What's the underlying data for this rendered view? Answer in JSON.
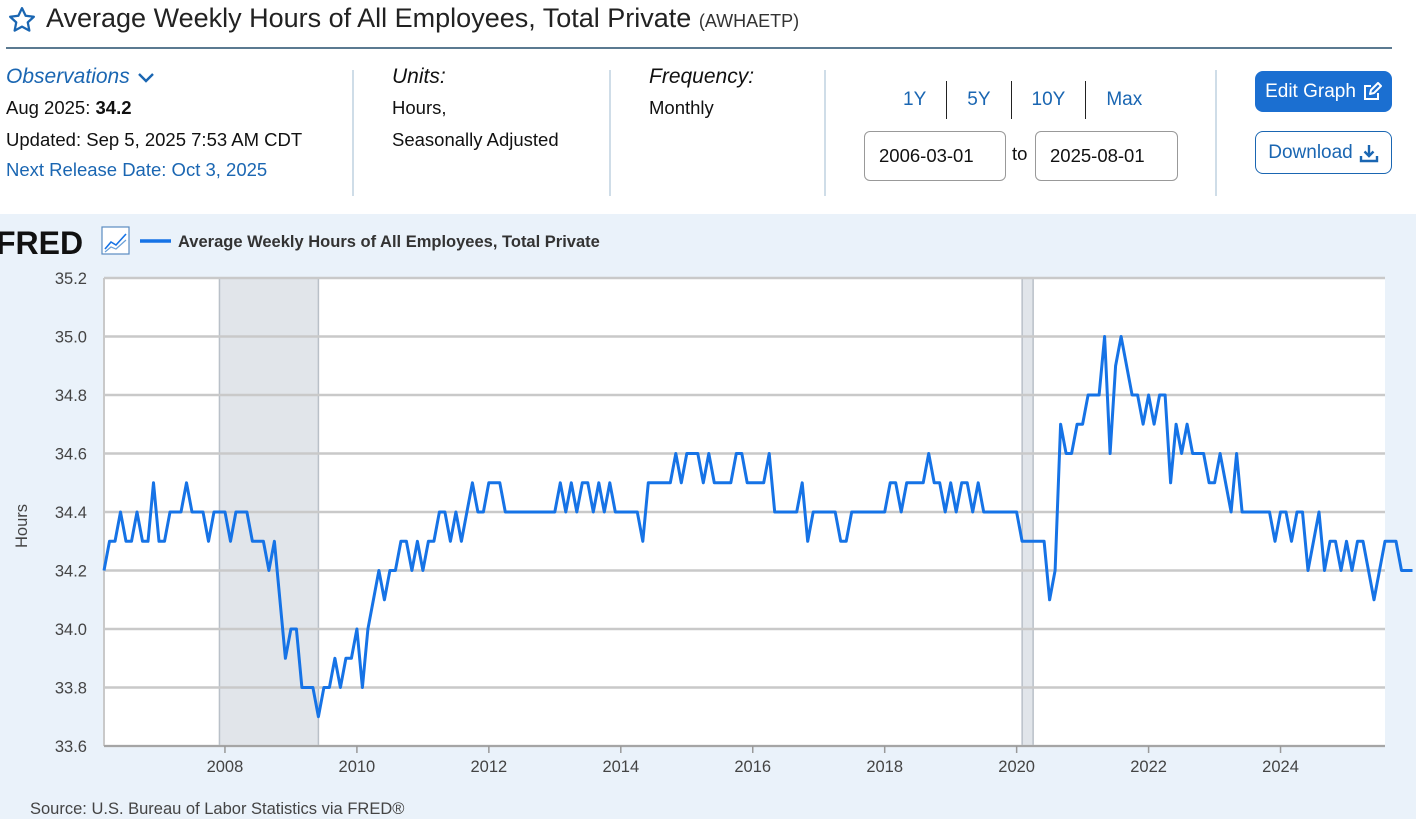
{
  "header": {
    "title": "Average Weekly Hours of All Employees, Total Private",
    "series_id": "(AWHAETP)"
  },
  "observations": {
    "link_label": "Observations",
    "latest_label": "Aug 2025:",
    "latest_value": "34.2",
    "updated": "Updated: Sep 5, 2025 7:53 AM CDT",
    "next_release": "Next Release Date: Oct 3, 2025"
  },
  "units": {
    "label": "Units:",
    "line1": "Hours,",
    "line2": "Seasonally Adjusted"
  },
  "frequency": {
    "label": "Frequency:",
    "value": "Monthly"
  },
  "range_buttons": [
    "1Y",
    "5Y",
    "10Y",
    "Max"
  ],
  "date_range": {
    "start": "2006-03-01",
    "to_label": "to",
    "end": "2025-08-01"
  },
  "actions": {
    "edit_label": "Edit Graph",
    "download_label": "Download"
  },
  "colors": {
    "accent": "#1a66b2",
    "series": "#1673e6",
    "recession": "#e1e5ea",
    "chart_bg": "#eaf2fa"
  },
  "chart_data": {
    "type": "line",
    "logo_text": "FRED",
    "legend": "Average Weekly Hours of All Employees, Total Private",
    "ylabel": "Hours",
    "ylim": [
      33.6,
      35.2
    ],
    "yticks": [
      "33.6",
      "33.8",
      "34.0",
      "34.2",
      "34.4",
      "34.6",
      "34.8",
      "35.0",
      "35.2"
    ],
    "xticks": [
      "2008",
      "2010",
      "2012",
      "2014",
      "2016",
      "2018",
      "2020",
      "2022",
      "2024"
    ],
    "x_start": "2006-03",
    "x_end": "2025-08",
    "source": "Source: U.S. Bureau of Labor Statistics via FRED®",
    "recessions": [
      {
        "start": "2007-12",
        "end": "2009-06"
      },
      {
        "start": "2020-02",
        "end": "2020-04"
      }
    ],
    "series": [
      {
        "name": "AWHAETP",
        "start": "2006-03",
        "values": [
          34.2,
          34.3,
          34.3,
          34.4,
          34.3,
          34.3,
          34.4,
          34.3,
          34.3,
          34.5,
          34.3,
          34.3,
          34.4,
          34.4,
          34.4,
          34.5,
          34.4,
          34.4,
          34.4,
          34.3,
          34.4,
          34.4,
          34.4,
          34.3,
          34.4,
          34.4,
          34.4,
          34.3,
          34.3,
          34.3,
          34.2,
          34.3,
          34.1,
          33.9,
          34.0,
          34.0,
          33.8,
          33.8,
          33.8,
          33.7,
          33.8,
          33.8,
          33.9,
          33.8,
          33.9,
          33.9,
          34.0,
          33.8,
          34.0,
          34.1,
          34.2,
          34.1,
          34.2,
          34.2,
          34.3,
          34.3,
          34.2,
          34.3,
          34.2,
          34.3,
          34.3,
          34.4,
          34.4,
          34.3,
          34.4,
          34.3,
          34.4,
          34.5,
          34.4,
          34.4,
          34.5,
          34.5,
          34.5,
          34.4,
          34.4,
          34.4,
          34.4,
          34.4,
          34.4,
          34.4,
          34.4,
          34.4,
          34.4,
          34.5,
          34.4,
          34.5,
          34.4,
          34.5,
          34.5,
          34.4,
          34.5,
          34.4,
          34.5,
          34.4,
          34.4,
          34.4,
          34.4,
          34.4,
          34.3,
          34.5,
          34.5,
          34.5,
          34.5,
          34.5,
          34.6,
          34.5,
          34.6,
          34.6,
          34.6,
          34.5,
          34.6,
          34.5,
          34.5,
          34.5,
          34.5,
          34.6,
          34.6,
          34.5,
          34.5,
          34.5,
          34.5,
          34.6,
          34.4,
          34.4,
          34.4,
          34.4,
          34.4,
          34.5,
          34.3,
          34.4,
          34.4,
          34.4,
          34.4,
          34.4,
          34.3,
          34.3,
          34.4,
          34.4,
          34.4,
          34.4,
          34.4,
          34.4,
          34.4,
          34.5,
          34.5,
          34.4,
          34.5,
          34.5,
          34.5,
          34.5,
          34.6,
          34.5,
          34.5,
          34.4,
          34.5,
          34.4,
          34.5,
          34.5,
          34.4,
          34.5,
          34.4,
          34.4,
          34.4,
          34.4,
          34.4,
          34.4,
          34.4,
          34.3,
          34.3,
          34.3,
          34.3,
          34.3,
          34.1,
          34.2,
          34.7,
          34.6,
          34.6,
          34.7,
          34.7,
          34.8,
          34.8,
          34.8,
          35.0,
          34.6,
          34.9,
          35.0,
          34.9,
          34.8,
          34.8,
          34.7,
          34.8,
          34.7,
          34.8,
          34.8,
          34.5,
          34.7,
          34.6,
          34.7,
          34.6,
          34.6,
          34.6,
          34.5,
          34.5,
          34.6,
          34.5,
          34.4,
          34.6,
          34.4,
          34.4,
          34.4,
          34.4,
          34.4,
          34.4,
          34.3,
          34.4,
          34.4,
          34.3,
          34.4,
          34.4,
          34.2,
          34.3,
          34.4,
          34.2,
          34.3,
          34.3,
          34.2,
          34.3,
          34.2,
          34.3,
          34.3,
          34.2,
          34.1,
          34.2,
          34.3,
          34.3,
          34.3,
          34.2,
          34.2,
          34.2
        ]
      }
    ]
  }
}
